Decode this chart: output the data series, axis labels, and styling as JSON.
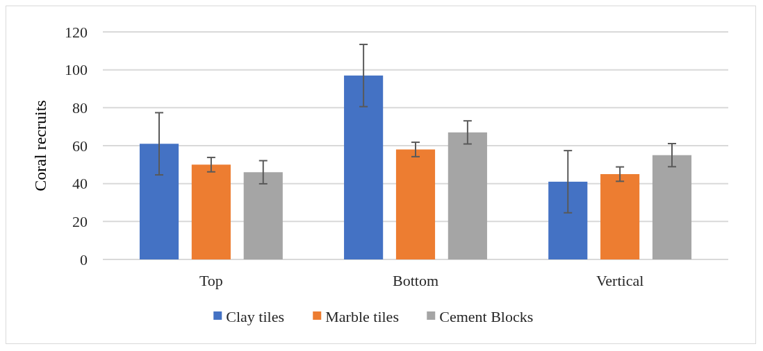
{
  "chart_data": {
    "type": "bar",
    "ylabel": "Coral recruits",
    "categories": [
      "Top",
      "Bottom",
      "Vertical"
    ],
    "series": [
      {
        "name": "Clay tiles",
        "color": "#4472c4",
        "values": [
          61,
          97,
          41
        ],
        "errors": [
          16.4,
          16.4,
          16.4
        ]
      },
      {
        "name": "Marble tiles",
        "color": "#ed7d31",
        "values": [
          50,
          58,
          45
        ],
        "errors": [
          3.8,
          3.8,
          3.8
        ]
      },
      {
        "name": "Cement Blocks",
        "color": "#a5a5a5",
        "values": [
          46,
          67,
          55
        ],
        "errors": [
          6.1,
          6.1,
          6.1
        ]
      }
    ],
    "ylim": [
      0,
      120
    ],
    "yticks": [
      0,
      20,
      40,
      60,
      80,
      100,
      120
    ],
    "grid": "y",
    "legend": "bottom"
  }
}
